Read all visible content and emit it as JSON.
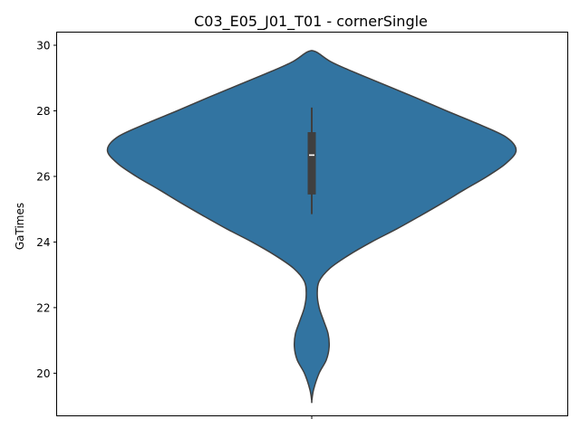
{
  "chart_data": {
    "type": "violin",
    "title": "C03_E05_J01_T01 - cornerSingle",
    "xlabel": "",
    "ylabel": "GaTimes",
    "ylim": [
      18.7,
      30.4
    ],
    "yticks": [
      "20",
      "22",
      "24",
      "26",
      "28",
      "30"
    ],
    "ytick_values": [
      20,
      22,
      24,
      26,
      28,
      30
    ],
    "colors": {
      "violin_fill": "#3274a1",
      "violin_edge": "#3f3f3f",
      "box": "#3f3f3f",
      "median": "#ffffff"
    },
    "density_profile": [
      {
        "y": 19.15,
        "half_width_fraction": 0.0
      },
      {
        "y": 19.5,
        "half_width_fraction": 0.009
      },
      {
        "y": 20.0,
        "half_width_fraction": 0.036
      },
      {
        "y": 20.4,
        "half_width_fraction": 0.071
      },
      {
        "y": 20.8,
        "half_width_fraction": 0.085
      },
      {
        "y": 21.2,
        "half_width_fraction": 0.08
      },
      {
        "y": 21.6,
        "half_width_fraction": 0.058
      },
      {
        "y": 22.0,
        "half_width_fraction": 0.036
      },
      {
        "y": 22.4,
        "half_width_fraction": 0.027
      },
      {
        "y": 22.8,
        "half_width_fraction": 0.036
      },
      {
        "y": 23.2,
        "half_width_fraction": 0.089
      },
      {
        "y": 23.6,
        "half_width_fraction": 0.181
      },
      {
        "y": 24.0,
        "half_width_fraction": 0.292
      },
      {
        "y": 24.4,
        "half_width_fraction": 0.416
      },
      {
        "y": 24.8,
        "half_width_fraction": 0.531
      },
      {
        "y": 25.2,
        "half_width_fraction": 0.642
      },
      {
        "y": 25.6,
        "half_width_fraction": 0.748
      },
      {
        "y": 26.0,
        "half_width_fraction": 0.858
      },
      {
        "y": 26.4,
        "half_width_fraction": 0.951
      },
      {
        "y": 26.8,
        "half_width_fraction": 1.0
      },
      {
        "y": 27.2,
        "half_width_fraction": 0.951
      },
      {
        "y": 27.6,
        "half_width_fraction": 0.814
      },
      {
        "y": 28.0,
        "half_width_fraction": 0.659
      },
      {
        "y": 28.4,
        "half_width_fraction": 0.509
      },
      {
        "y": 28.8,
        "half_width_fraction": 0.354
      },
      {
        "y": 29.2,
        "half_width_fraction": 0.199
      },
      {
        "y": 29.5,
        "half_width_fraction": 0.093
      },
      {
        "y": 29.8,
        "half_width_fraction": 0.02
      }
    ],
    "box_stats": {
      "whisker_low": 24.85,
      "q1": 25.45,
      "median": 26.65,
      "q3": 27.35,
      "whisker_high": 28.1
    }
  }
}
